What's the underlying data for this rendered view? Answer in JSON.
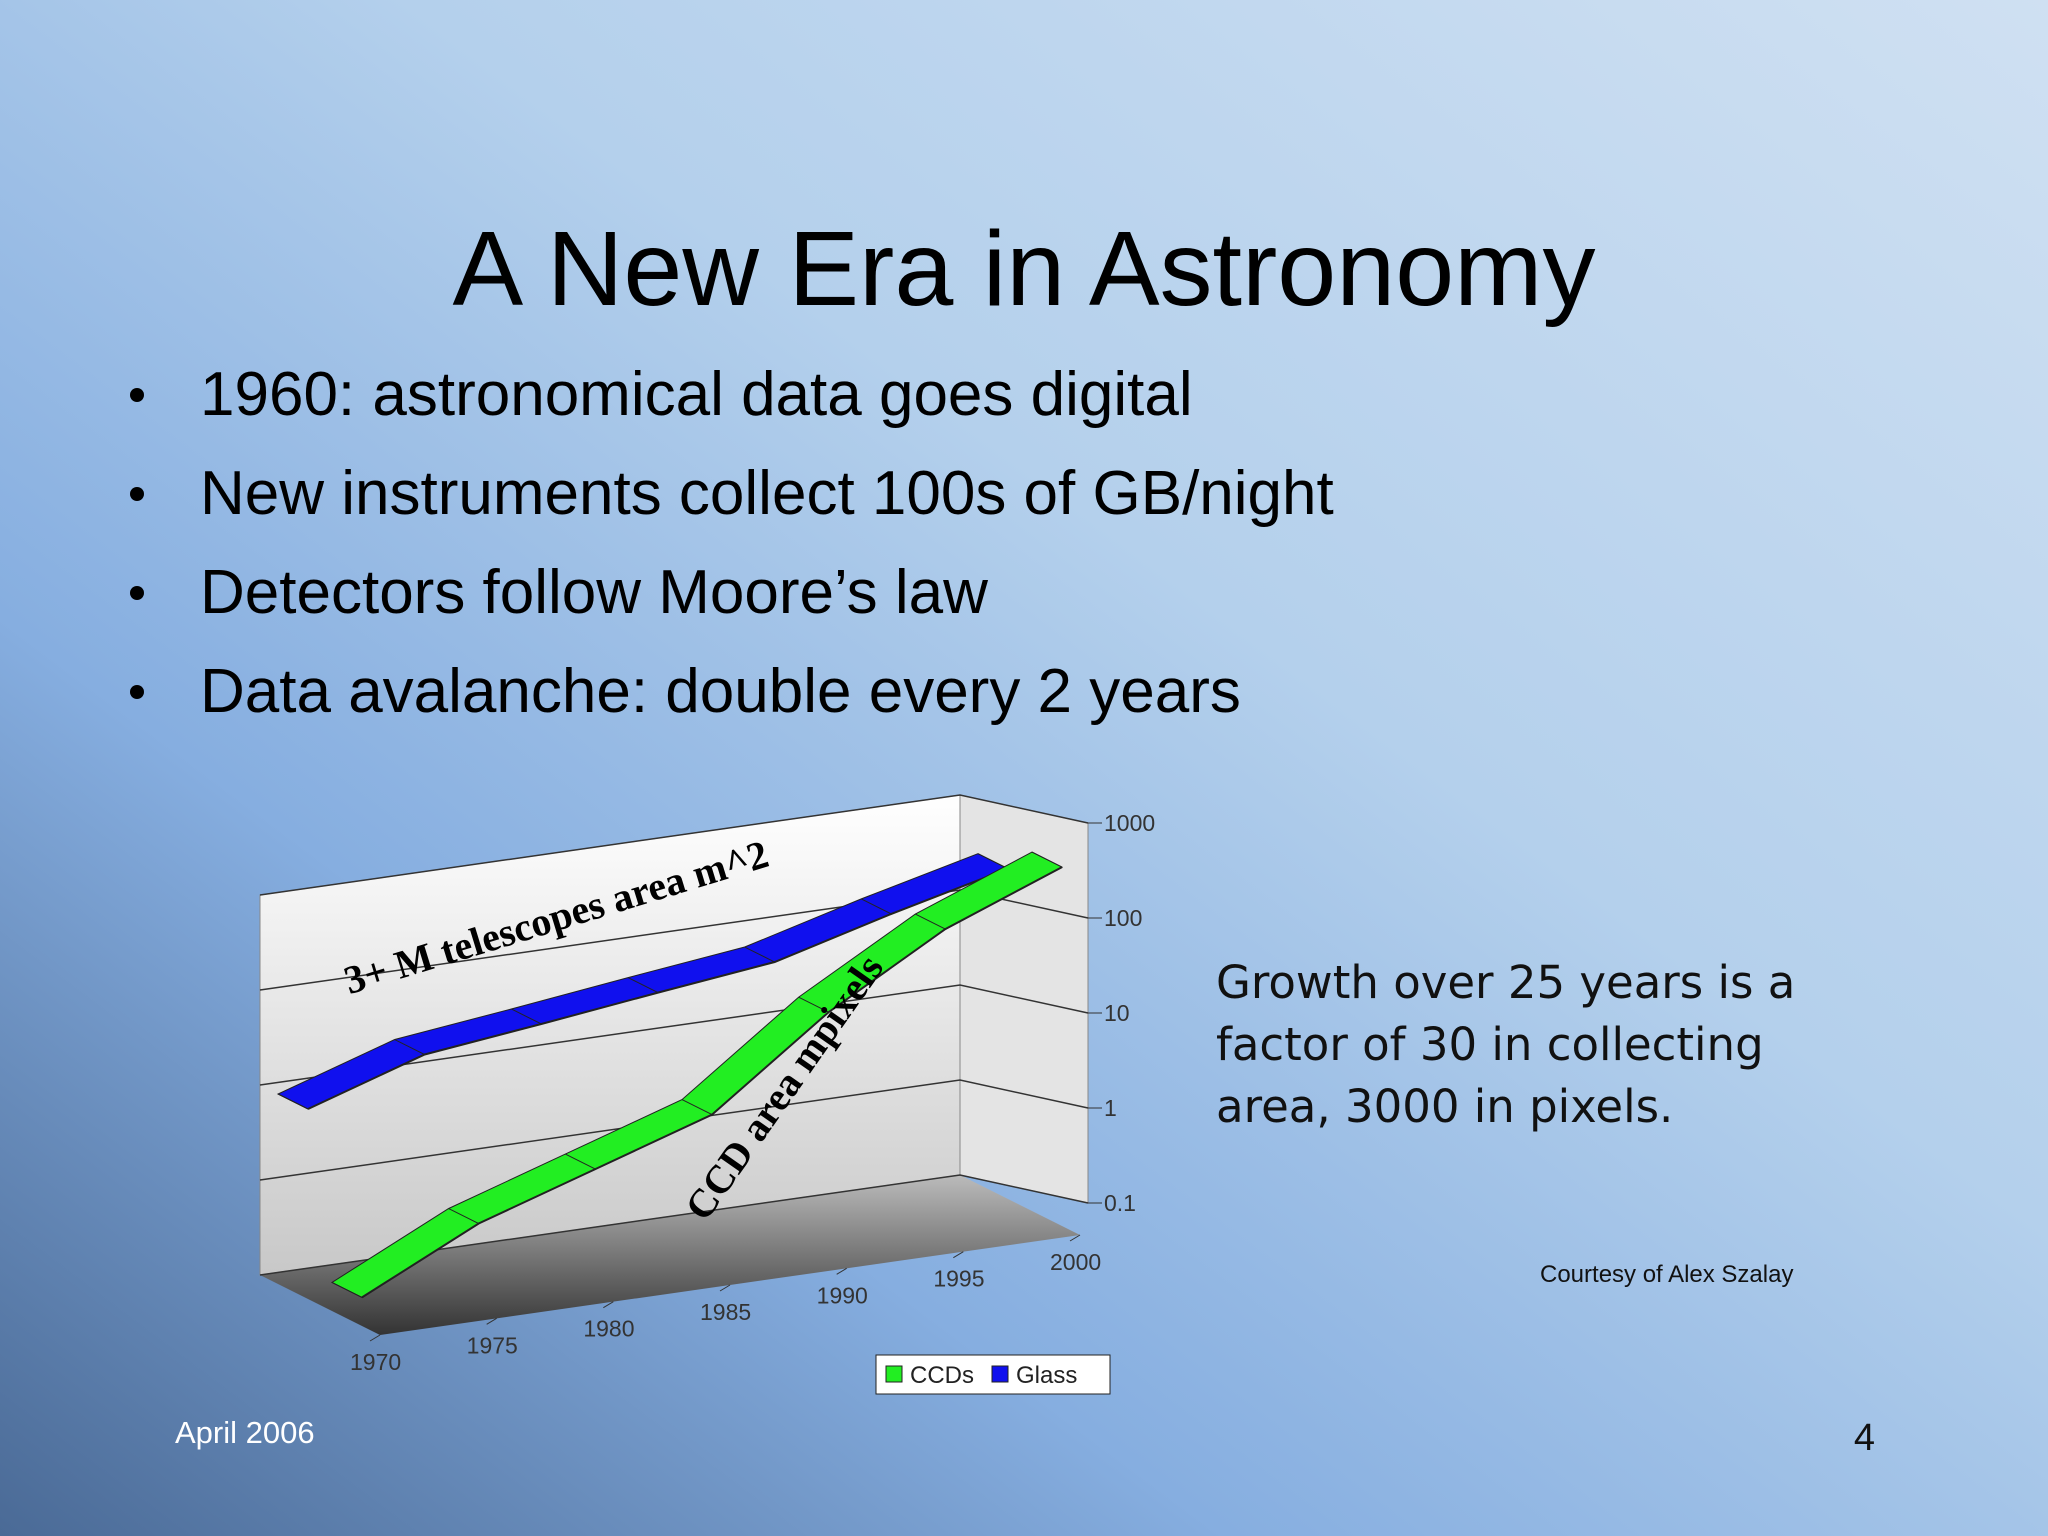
{
  "title": "A New Era in Astronomy",
  "bullets": [
    "1960: astronomical data goes digital",
    "New instruments collect 100s of GB/night",
    "Detectors follow Moore’s law",
    "Data avalanche: double every 2 years"
  ],
  "note": [
    "Growth over 25 years is a",
    "factor of 30 in collecting",
    "area, 3000 in pixels."
  ],
  "credit": "Courtesy  of  Alex Szalay",
  "footer": "April 2006",
  "page_number": "4",
  "chart_data": {
    "type": "ribbon3d",
    "x": [
      1970,
      1975,
      1980,
      1985,
      1990,
      1995,
      2000
    ],
    "xlim": [
      1970,
      2000
    ],
    "series": [
      {
        "name": "CCDs",
        "color": "#22ee22",
        "values": [
          0.2,
          0.8,
          2,
          5,
          40,
          200,
          600
        ]
      },
      {
        "name": "Glass",
        "color": "#1010ee",
        "values": [
          10,
          25,
          35,
          50,
          70,
          150,
          300
        ]
      }
    ],
    "annotations": [
      "3+ M telescopes area  m^2",
      "CCD area mpixels"
    ],
    "log_scale": true,
    "ylim": [
      0.1,
      1000
    ],
    "yticks": [
      0.1,
      1,
      10,
      100,
      1000
    ],
    "grid": true
  }
}
